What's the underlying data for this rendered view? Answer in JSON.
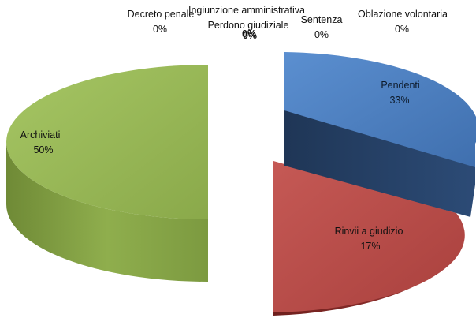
{
  "chart_data": {
    "type": "pie",
    "title": "",
    "style": "3d-exploded",
    "slices": [
      {
        "label": "Pendenti",
        "value": 33,
        "value_label": "33%",
        "color": "#4a7ebb"
      },
      {
        "label": "Rinvii a giudizio",
        "value": 17,
        "value_label": "17%",
        "color": "#be4b48"
      },
      {
        "label": "Archiviati",
        "value": 50,
        "value_label": "50%",
        "color": "#98b954"
      },
      {
        "label": "Decreto penale",
        "value": 0,
        "value_label": "0%",
        "color": "#8064a2"
      },
      {
        "label": "Ingiunzione amministrativa",
        "value": 0,
        "value_label": "0%",
        "color": "#4bacc6"
      },
      {
        "label": "Perdono giudiziale",
        "value": 0,
        "value_label": "0%",
        "color": "#f79646"
      },
      {
        "label": "Sentenza",
        "value": 0,
        "value_label": "0%",
        "color": "#2c4d75"
      },
      {
        "label": "Oblazione volontaria",
        "value": 0,
        "value_label": "0%",
        "color": "#772c2a"
      }
    ],
    "legend": "none"
  }
}
